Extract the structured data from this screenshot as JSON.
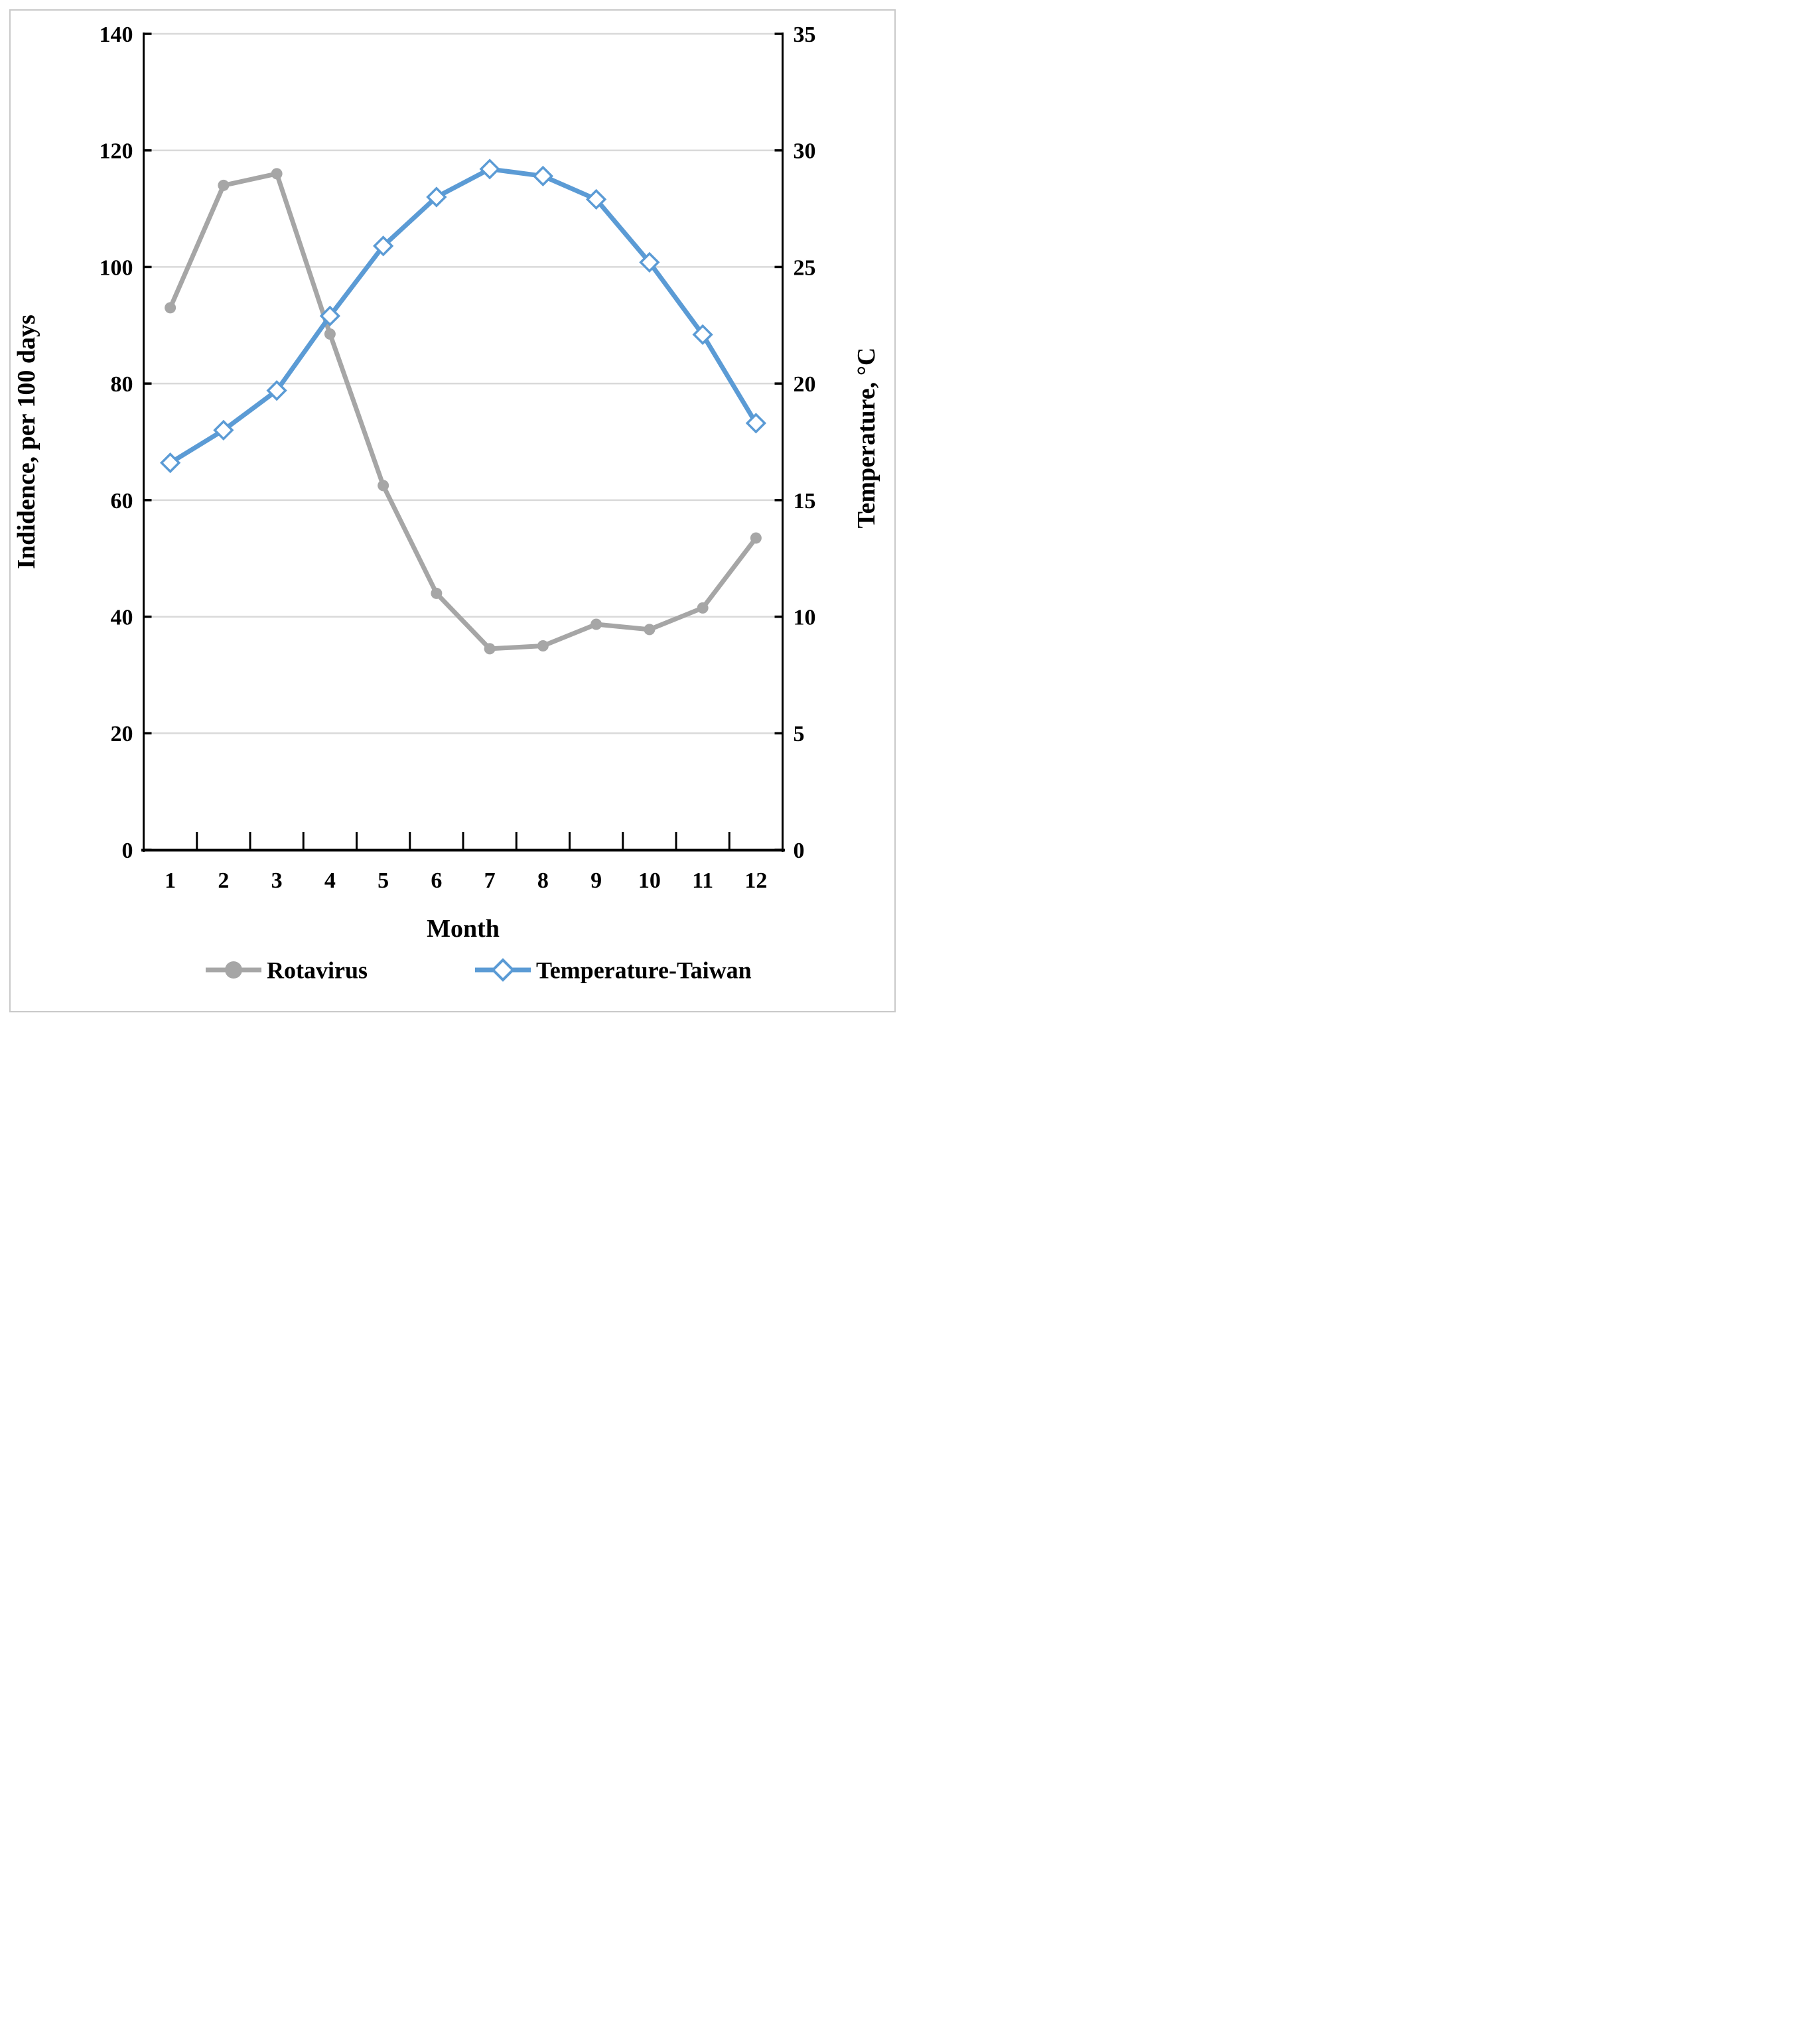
{
  "figure": {
    "background": "#FFFFFF",
    "frame_color": "#C9C9C9"
  },
  "chart_data": {
    "type": "line",
    "title": "",
    "xlabel": "Month",
    "ylabel_left": "Indidence, per 100 days",
    "ylabel_right": "Temperature, °C",
    "x": [
      1,
      2,
      3,
      4,
      5,
      6,
      7,
      8,
      9,
      10,
      11,
      12
    ],
    "xtick_labels": [
      "1",
      "2",
      "3",
      "4",
      "5",
      "6",
      "7",
      "8",
      "9",
      "10",
      "11",
      "12"
    ],
    "ylim_left": [
      0,
      140
    ],
    "ytick_step_left": 20,
    "ytick_labels_left": [
      "0",
      "20",
      "40",
      "60",
      "80",
      "100",
      "120",
      "140"
    ],
    "ylim_right": [
      0,
      35
    ],
    "ytick_step_right": 5,
    "ytick_labels_right": [
      "0",
      "5",
      "10",
      "15",
      "20",
      "25",
      "30",
      "35"
    ],
    "grid": true,
    "gridline_color": "#D9D9D9",
    "axis_color": "#000000",
    "legend_position": "bottom-center",
    "series": [
      {
        "name": "Rotavirus",
        "axis": "left",
        "color": "#A6A6A6",
        "marker": "filled-circle",
        "values": [
          93,
          114,
          116,
          88.5,
          62.5,
          44,
          34.5,
          35,
          38.7,
          37.8,
          41.5,
          53.5
        ]
      },
      {
        "name": "Temperature-Taiwan",
        "axis": "right",
        "color": "#5B9BD5",
        "marker": "open-diamond",
        "values": [
          16.6,
          18.0,
          19.7,
          22.9,
          25.9,
          28.0,
          29.2,
          28.9,
          27.9,
          25.2,
          22.1,
          18.3
        ]
      }
    ]
  }
}
